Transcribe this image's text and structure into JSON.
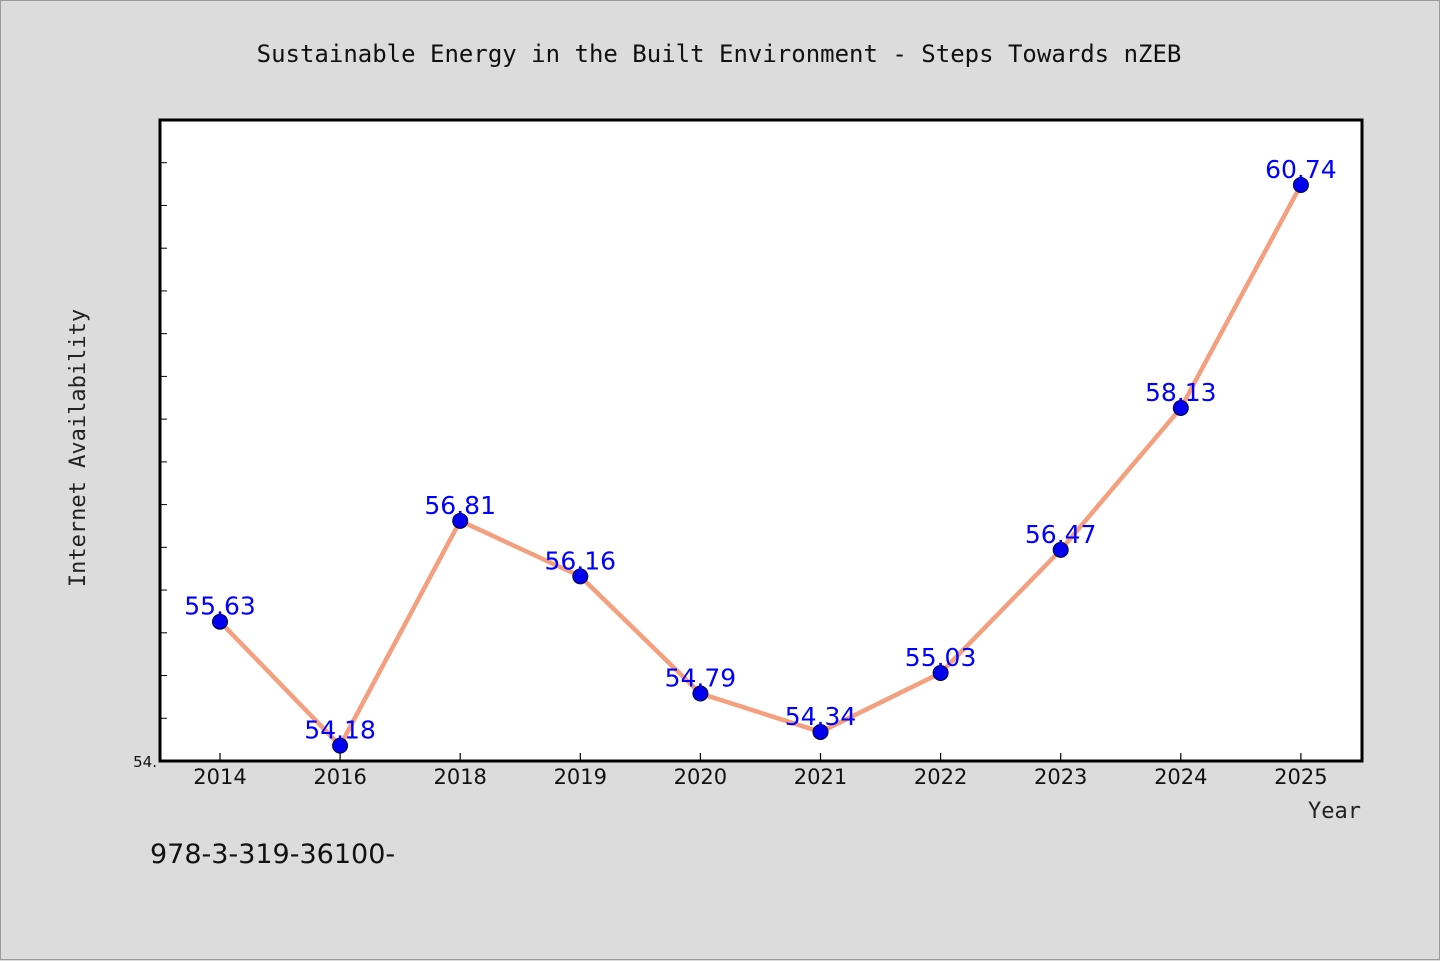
{
  "figure": {
    "title": "Sustainable Energy in the Built Environment - Steps Towards nZEB",
    "footer_text": "978-3-319-36100-"
  },
  "chart_data": {
    "type": "line",
    "title": "Sustainable Energy in the Built Environment - Steps Towards nZEB",
    "xlabel": "Year",
    "ylabel": "Internet Availability",
    "categories": [
      "2014",
      "2016",
      "2018",
      "2019",
      "2020",
      "2021",
      "2022",
      "2023",
      "2024",
      "2025"
    ],
    "series": [
      {
        "values": [
          55.63,
          54.18,
          56.81,
          56.16,
          54.79,
          54.34,
          55.03,
          56.47,
          58.13,
          60.74
        ]
      }
    ],
    "data_labels": [
      "55.63",
      "54.18",
      "56.81",
      "56.16",
      "54.79",
      "54.34",
      "55.03",
      "56.47",
      "58.13",
      "60.74"
    ],
    "ytick_labels": [
      "54."
    ],
    "ylim": [
      54.0,
      61.5
    ],
    "y_minor_tick_step": 0.5,
    "grid": false,
    "legend": "none",
    "colors": {
      "line": "#f4a07e",
      "marker": "#0000ee",
      "data_label": "#0000ff",
      "plot_background": "#ffffff",
      "figure_background": "#dcdcdc"
    }
  }
}
